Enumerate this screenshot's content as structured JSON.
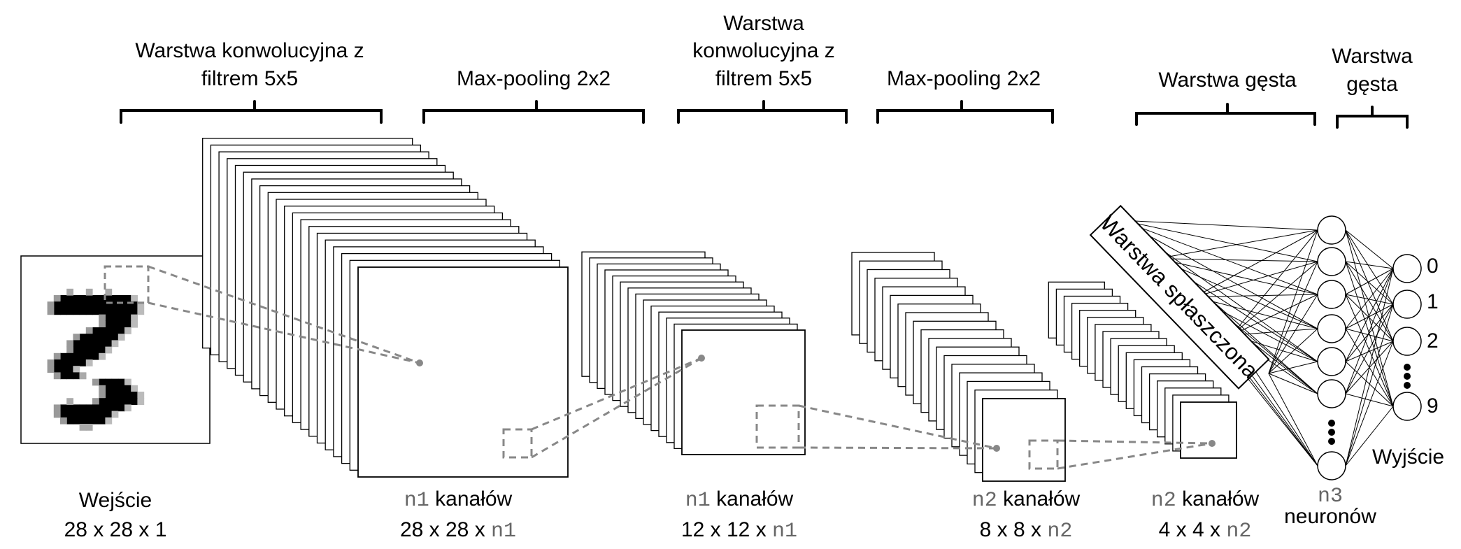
{
  "headers": {
    "conv1_line1": "Warstwa konwolucyjna z",
    "conv1_line2": "filtrem 5x5",
    "pool1": "Max-pooling 2x2",
    "conv2_line1": "Warstwa",
    "conv2_line2": "konwolucyjna z",
    "conv2_line3": "filtrem 5x5",
    "pool2": "Max-pooling 2x2",
    "dense1": "Warstwa gęsta",
    "dense2_line1": "Warstwa",
    "dense2_line2": "gęsta"
  },
  "flatten_label": "Warstwa spłaszczona",
  "output": {
    "labels": [
      "0",
      "1",
      "2",
      "9"
    ],
    "title": "Wyjście"
  },
  "captions": {
    "input": {
      "line1": "Wejście",
      "line2": "28 x 28 x 1"
    },
    "conv1": {
      "var": "n1",
      "word": " kanałów",
      "dims": "28 x 28 x ",
      "dims_var": "n1"
    },
    "pool1": {
      "var": "n1",
      "word": " kanałów",
      "dims": "12 x 12 x ",
      "dims_var": "n1"
    },
    "conv2": {
      "var": "n2",
      "word": " kanałów",
      "dims": "8 x 8 x ",
      "dims_var": "n2"
    },
    "pool2": {
      "var": "n2",
      "word": " kanałów",
      "dims": "4 x 4 x ",
      "dims_var": "n2"
    },
    "dense": {
      "var": "n3",
      "word": "neuronów"
    }
  }
}
